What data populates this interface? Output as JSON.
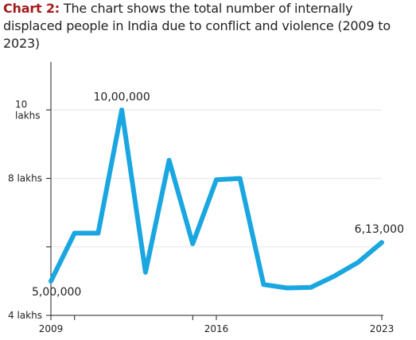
{
  "header": {
    "lead": "Chart 2:",
    "text": "The chart shows the total number of internally displaced people in India due to conflict and violence (2009 to 2023)"
  },
  "chart_data": {
    "type": "line",
    "title": "Chart 2: The chart shows the total number of internally displaced people in India due to conflict and violence (2009 to 2023)",
    "xlabel": "",
    "ylabel": "",
    "x": [
      2009,
      2010,
      2011,
      2012,
      2013,
      2014,
      2015,
      2016,
      2017,
      2018,
      2019,
      2020,
      2021,
      2022,
      2023
    ],
    "series": [
      {
        "values": [
          500000,
          640000,
          640000,
          1000000,
          526000,
          853000,
          609000,
          796000,
          800000,
          490000,
          480000,
          482000,
          515000,
          555000,
          613000
        ]
      }
    ],
    "ylim": [
      400000,
      1140000
    ],
    "xlim": [
      2009,
      2023
    ],
    "x_tick_labels": [
      "2009",
      "2016",
      "2023"
    ],
    "y_ticks": [
      {
        "value": 1000000,
        "label": [
          "10",
          "lakhs"
        ]
      },
      {
        "value": 800000,
        "label": [
          "8 lakhs"
        ]
      },
      {
        "value": 600000,
        "label": [
          ""
        ]
      },
      {
        "value": 400000,
        "label": [
          "4 lakhs"
        ]
      }
    ],
    "minor_x_ticks": [
      2010,
      2015
    ],
    "annotations": [
      {
        "x": 2012,
        "y": 1000000,
        "text": "10,00,000",
        "position": "above"
      },
      {
        "x": 2009,
        "y": 500000,
        "text": "5,00,000",
        "position": "below-right"
      },
      {
        "x": 2023,
        "y": 613000,
        "text": "6,13,000",
        "position": "above"
      }
    ],
    "line_color": "#1aa6e0",
    "grid": "horizontal",
    "legend": "none"
  }
}
